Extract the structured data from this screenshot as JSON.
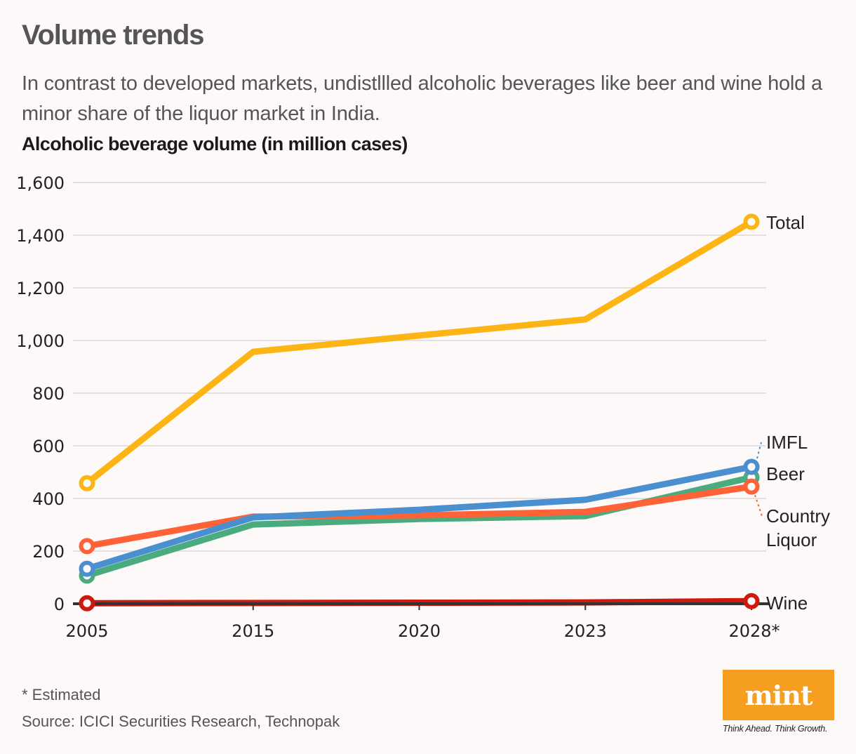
{
  "header": {
    "title": "Volume trends",
    "subtitle": "In contrast to developed markets, undistllled alcoholic beverages like beer and wine hold a minor share of the liquor market in India.",
    "chart_heading": "Alcoholic beverage volume (in million cases)"
  },
  "footer": {
    "note": "* Estimated",
    "source": "Source: ICICI Securities Research, Technopak"
  },
  "brand": {
    "logo_text": "mint",
    "tagline": "Think Ahead. Think Growth.",
    "logo_color": "#f59e1f"
  },
  "chart_data": {
    "type": "line",
    "title": "Alcoholic beverage volume (in million cases)",
    "xlabel": "",
    "ylabel": "",
    "categories": [
      "2005",
      "2015",
      "2020",
      "2023",
      "2028*"
    ],
    "ylim": [
      0,
      1600
    ],
    "yticks": [
      0,
      200,
      400,
      600,
      800,
      1000,
      1200,
      1400,
      1600
    ],
    "ytick_labels": [
      "0",
      "200",
      "400",
      "600",
      "800",
      "1,000",
      "1,200",
      "1,400",
      "1,600"
    ],
    "grid": true,
    "legend": "direct-labels-right",
    "series": [
      {
        "name": "Total",
        "color": "#fdb515",
        "values": [
          458,
          957,
          1019,
          1080,
          1451
        ]
      },
      {
        "name": "Beer",
        "color": "#4aab7f",
        "values": [
          107,
          301,
          322,
          333,
          480
        ]
      },
      {
        "name": "Country Liquor",
        "color": "#ff6236",
        "values": [
          219,
          331,
          336,
          349,
          445
        ]
      },
      {
        "name": "IMFL",
        "color": "#4a90d0",
        "values": [
          133,
          328,
          357,
          395,
          520
        ]
      },
      {
        "name": "Wine",
        "color": "#d0190e",
        "values": [
          2,
          3,
          4,
          5,
          10
        ]
      }
    ],
    "labels": [
      {
        "series": "Total",
        "text": [
          "Total"
        ]
      },
      {
        "series": "IMFL",
        "text": [
          "IMFL"
        ]
      },
      {
        "series": "Beer",
        "text": [
          "Beer"
        ]
      },
      {
        "series": "Country Liquor",
        "text": [
          "Country",
          "Liquor"
        ]
      },
      {
        "series": "Wine",
        "text": [
          "Wine"
        ]
      }
    ],
    "annotations": [
      "* Estimated"
    ]
  }
}
